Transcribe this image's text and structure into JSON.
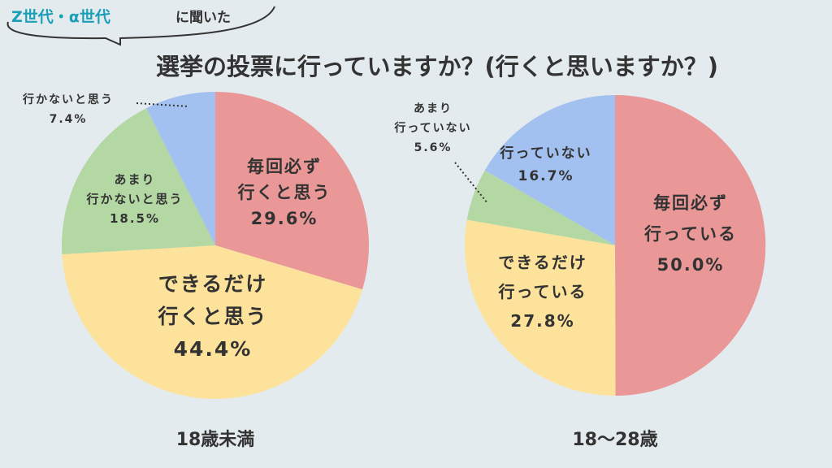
{
  "header": {
    "tag_accent": "Z世代・α世代",
    "tag_rest": "に聞いた",
    "title": "選挙の投票に行っていますか？(行くと思いますか？)",
    "accent_color": "#1a9fb8"
  },
  "chart_data": [
    {
      "type": "pie",
      "title": "18歳未満",
      "slices": [
        {
          "label_lines": [
            "毎回必ず",
            "行くと思う"
          ],
          "value": 29.6,
          "value_text": "29.6%",
          "color": "#e99797"
        },
        {
          "label_lines": [
            "できるだけ",
            "行くと思う"
          ],
          "value": 44.4,
          "value_text": "44.4%",
          "color": "#fde29b"
        },
        {
          "label_lines": [
            "あまり",
            "行かないと思う"
          ],
          "value": 18.5,
          "value_text": "18.5%",
          "color": "#b4d8a4"
        },
        {
          "label_lines": [
            "行かないと思う"
          ],
          "value": 7.4,
          "value_text": "7.4%",
          "color": "#a3c1f0"
        }
      ]
    },
    {
      "type": "pie",
      "title": "18〜28歳",
      "slices": [
        {
          "label_lines": [
            "毎回必ず",
            "行っている"
          ],
          "value": 50.0,
          "value_text": "50.0%",
          "color": "#e99797"
        },
        {
          "label_lines": [
            "できるだけ",
            "行っている"
          ],
          "value": 27.8,
          "value_text": "27.8%",
          "color": "#fde29b"
        },
        {
          "label_lines": [
            "あまり",
            "行っていない"
          ],
          "value": 5.6,
          "value_text": "5.6%",
          "color": "#b4d8a4"
        },
        {
          "label_lines": [
            "行っていない"
          ],
          "value": 16.7,
          "value_text": "16.7%",
          "color": "#a3c1f0"
        }
      ]
    }
  ]
}
